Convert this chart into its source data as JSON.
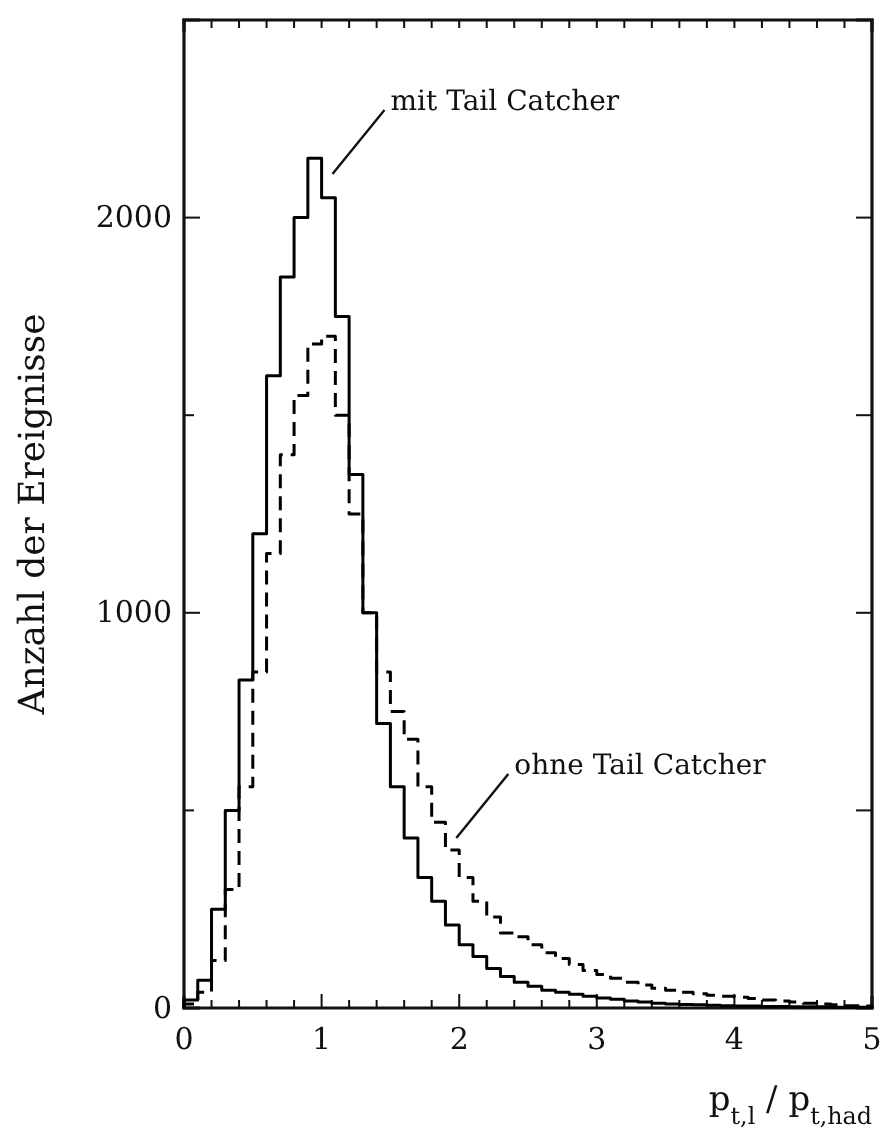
{
  "chart_data": {
    "type": "histogram",
    "ylabel": "Anzahl der Ereignisse",
    "xlabel": "p$_{t,l}$ / p$_{t,had}$",
    "bins": [
      0,
      0.1,
      0.2,
      0.3,
      0.4,
      0.5,
      0.6,
      0.7,
      0.8,
      0.9,
      1,
      1.1,
      1.2,
      1.3,
      1.4,
      1.5,
      1.6,
      1.7,
      1.8,
      1.9,
      2,
      2.1,
      2.2,
      2.3,
      2.4,
      2.5,
      2.6,
      2.7,
      2.8,
      2.9,
      3,
      3.1,
      3.2,
      3.3,
      3.4,
      3.5,
      3.6,
      3.7,
      3.8,
      3.9,
      4,
      4.1,
      4.2,
      4.3,
      4.4,
      4.5,
      4.6,
      4.7,
      4.8,
      4.9,
      5
    ],
    "series": [
      {
        "color": "#000000",
        "line_style": "solid",
        "values": [
          20,
          70,
          250,
          500,
          830,
          1200,
          1600,
          1850,
          2000,
          2150,
          2050,
          1750,
          1350,
          1000,
          720,
          560,
          430,
          330,
          270,
          210,
          160,
          130,
          100,
          80,
          65,
          55,
          45,
          40,
          35,
          30,
          25,
          22,
          18,
          15,
          12,
          10,
          9,
          8,
          7,
          6,
          5,
          5,
          4,
          4,
          3,
          3,
          3,
          2,
          2,
          2
        ]
      },
      {
        "color": "#000000",
        "line_style": "dashed",
        "values": [
          10,
          40,
          120,
          300,
          560,
          850,
          1150,
          1400,
          1550,
          1680,
          1700,
          1500,
          1250,
          1000,
          850,
          750,
          680,
          560,
          470,
          400,
          330,
          270,
          230,
          190,
          180,
          160,
          140,
          125,
          110,
          95,
          85,
          75,
          65,
          58,
          50,
          45,
          40,
          36,
          32,
          30,
          27,
          24,
          20,
          18,
          15,
          12,
          10,
          8,
          6,
          5
        ]
      }
    ],
    "xlim": [
      0,
      5
    ],
    "ylim": [
      0,
      2500
    ],
    "xticks": [
      0,
      {
        "value": 0.2,
        "label": null
      },
      {
        "value": 0.4,
        "label": null
      },
      {
        "value": 0.6,
        "label": null
      },
      {
        "value": 0.8,
        "label": null
      },
      1,
      {
        "value": 1.2,
        "label": null
      },
      {
        "value": 1.4,
        "label": null
      },
      {
        "value": 1.6,
        "label": null
      },
      {
        "value": 1.8,
        "label": null
      },
      2,
      {
        "value": 2.2,
        "label": null
      },
      {
        "value": 2.4,
        "label": null
      },
      {
        "value": 2.6,
        "label": null
      },
      {
        "value": 2.8,
        "label": null
      },
      3,
      {
        "value": 3.2,
        "label": null
      },
      {
        "value": 3.4,
        "label": null
      },
      {
        "value": 3.6,
        "label": null
      },
      {
        "value": 3.8,
        "label": null
      },
      4,
      {
        "value": 4.2,
        "label": null
      },
      {
        "value": 4.4,
        "label": null
      },
      {
        "value": 4.6,
        "label": null
      },
      {
        "value": 4.8,
        "label": null
      },
      5
    ],
    "yticks": [
      0,
      {
        "value": 500,
        "label": null
      },
      1000,
      {
        "value": 1500,
        "label": null
      },
      2000
    ],
    "annotations": [
      {
        "text": "mit Tail Catcher",
        "x": 1.05,
        "y": 2100
      },
      {
        "text": "ohne Tail Catcher",
        "x": 1.95,
        "y": 420
      }
    ],
    "grid": false
  }
}
